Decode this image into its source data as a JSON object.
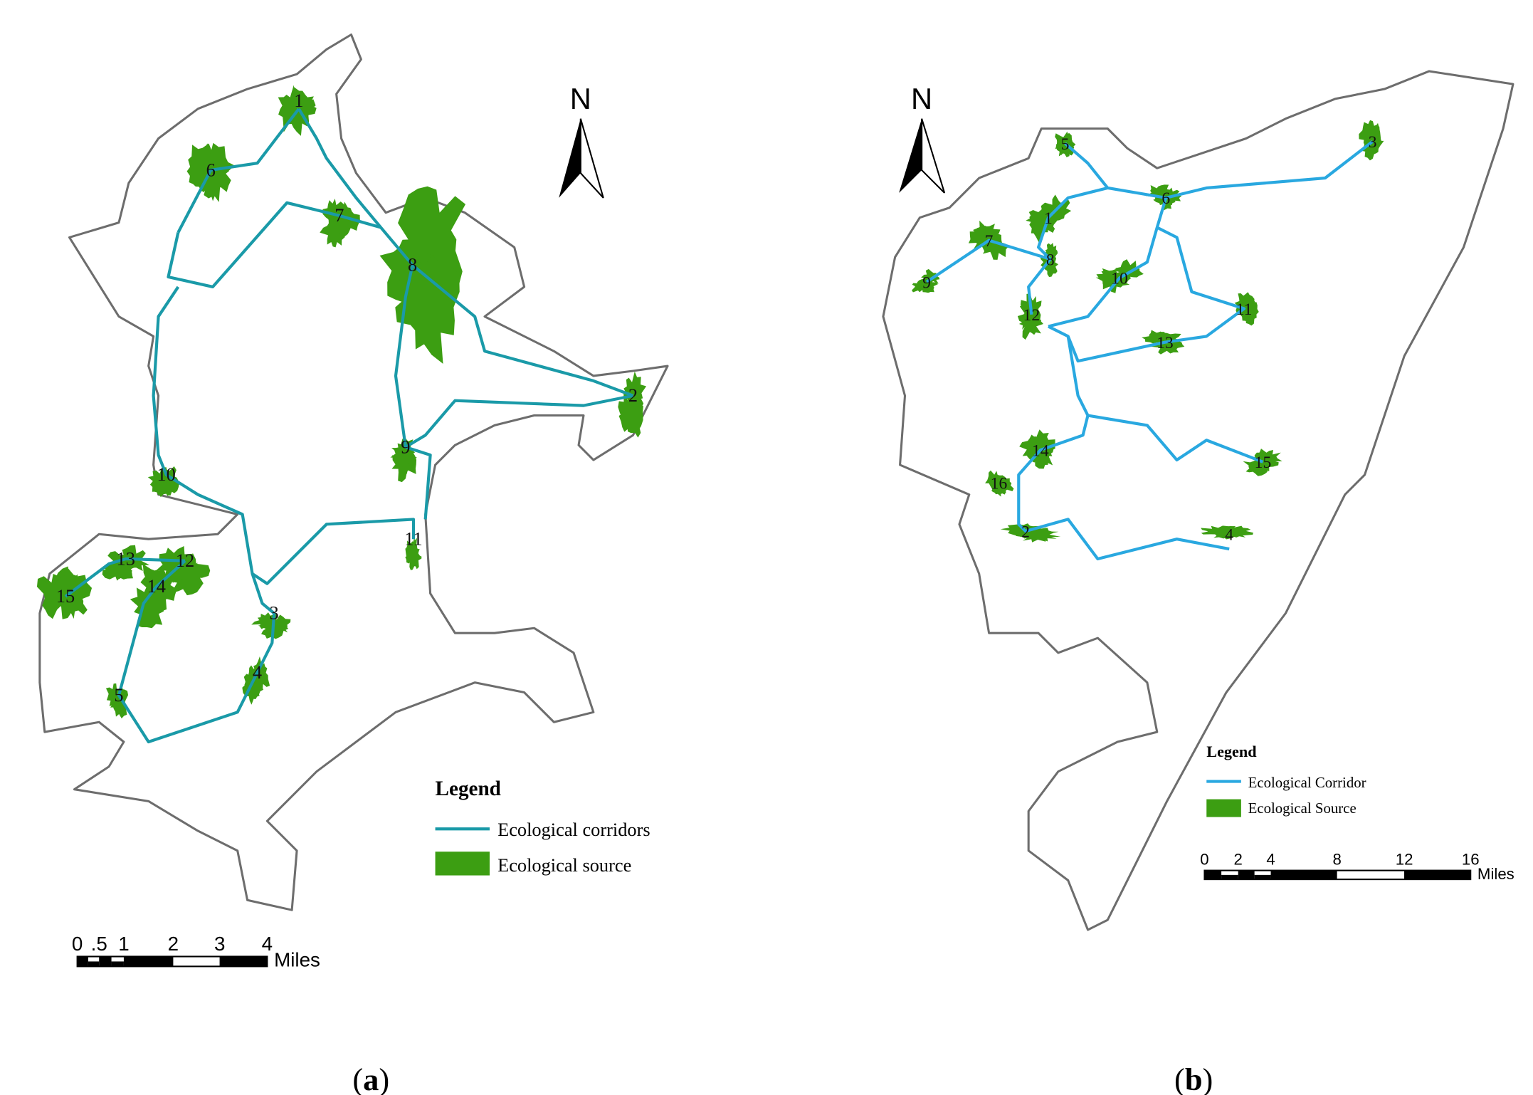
{
  "panels": [
    {
      "north": "N",
      "legend": {
        "title": "Legend",
        "items": [
          "Ecological corridors",
          "Ecological source"
        ]
      },
      "scale": {
        "ticks": [
          "0",
          ".5",
          "1",
          "2",
          "3",
          "4"
        ],
        "unit": "Miles"
      },
      "nodes": [
        "1",
        "2",
        "3",
        "4",
        "5",
        "6",
        "7",
        "8",
        "9",
        "10",
        "11",
        "12",
        "13",
        "14",
        "15"
      ],
      "caption": [
        "(",
        "a",
        ")"
      ]
    },
    {
      "north": "N",
      "legend": {
        "title": "Legend",
        "items": [
          "Ecological Corridor",
          "Ecological Source"
        ]
      },
      "scale": {
        "ticks": [
          "0",
          "2",
          "4",
          "8",
          "12",
          "16"
        ],
        "unit": "Miles"
      },
      "nodes": [
        "1",
        "2",
        "3",
        "4",
        "5",
        "6",
        "7",
        "8",
        "9",
        "10",
        "11",
        "12",
        "13",
        "14",
        "15",
        "16"
      ],
      "caption": [
        "(",
        "b",
        ")"
      ]
    }
  ]
}
